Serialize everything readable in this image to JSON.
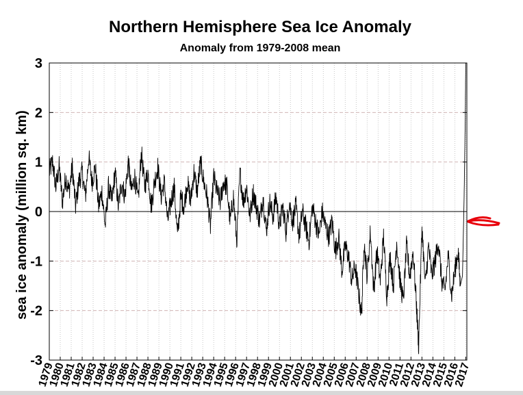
{
  "chart_data": {
    "type": "line",
    "title": "Northern Hemisphere Sea Ice Anomaly",
    "subtitle": "Anomaly from 1979-2008 mean",
    "xlabel": "",
    "ylabel": "sea ice anomaly (million sq. km)",
    "xlim": [
      1979,
      2017.1
    ],
    "ylim": [
      -3,
      3
    ],
    "yticks": [
      "3",
      "2",
      "1",
      "0",
      "-1",
      "-2",
      "-3"
    ],
    "ytick_values": [
      3,
      2,
      1,
      0,
      -1,
      -2,
      -3
    ],
    "xticks": [
      "1979",
      "1980",
      "1981",
      "1982",
      "1983",
      "1984",
      "1985",
      "1986",
      "1987",
      "1988",
      "1989",
      "1990",
      "1991",
      "1992",
      "1993",
      "1994",
      "1995",
      "1996",
      "1997",
      "1998",
      "1999",
      "2000",
      "2001",
      "2002",
      "2003",
      "2004",
      "2005",
      "2006",
      "2007",
      "2008",
      "2009",
      "2010",
      "2011",
      "2012",
      "2013",
      "2014",
      "2015",
      "2016",
      "2017"
    ],
    "grid": true,
    "zero_line": true,
    "series": [
      {
        "name": "anomaly",
        "color": "#000000",
        "x": [
          1979.0,
          1979.3,
          1979.6,
          1979.9,
          1980.2,
          1980.5,
          1980.8,
          1981.1,
          1981.4,
          1981.7,
          1982.0,
          1982.3,
          1982.6,
          1982.9,
          1983.2,
          1983.5,
          1983.8,
          1984.1,
          1984.4,
          1984.7,
          1985.0,
          1985.3,
          1985.6,
          1985.9,
          1986.2,
          1986.5,
          1986.8,
          1987.1,
          1987.4,
          1987.7,
          1988.0,
          1988.3,
          1988.6,
          1988.9,
          1989.2,
          1989.5,
          1989.8,
          1990.1,
          1990.4,
          1990.7,
          1991.0,
          1991.3,
          1991.6,
          1991.9,
          1992.2,
          1992.5,
          1992.8,
          1993.1,
          1993.4,
          1993.7,
          1994.0,
          1994.3,
          1994.6,
          1994.9,
          1995.2,
          1995.5,
          1995.8,
          1996.1,
          1996.4,
          1996.7,
          1997.0,
          1997.3,
          1997.6,
          1997.9,
          1998.2,
          1998.5,
          1998.8,
          1999.1,
          1999.4,
          1999.7,
          2000.0,
          2000.3,
          2000.6,
          2000.9,
          2001.2,
          2001.5,
          2001.8,
          2002.1,
          2002.4,
          2002.7,
          2003.0,
          2003.3,
          2003.6,
          2003.9,
          2004.2,
          2004.5,
          2004.8,
          2005.1,
          2005.4,
          2005.7,
          2006.0,
          2006.3,
          2006.6,
          2006.9,
          2007.2,
          2007.5,
          2007.7,
          2008.0,
          2008.3,
          2008.6,
          2008.9,
          2009.2,
          2009.5,
          2009.8,
          2010.1,
          2010.4,
          2010.7,
          2011.0,
          2011.3,
          2011.6,
          2011.9,
          2012.2,
          2012.5,
          2012.7,
          2013.0,
          2013.3,
          2013.6,
          2013.9,
          2014.2,
          2014.5,
          2014.8,
          2015.1,
          2015.4,
          2015.7,
          2016.0,
          2016.3,
          2016.5,
          2016.7,
          2016.85,
          2016.95,
          2017.0
        ],
        "y": [
          0.8,
          1.0,
          0.5,
          0.9,
          0.2,
          0.7,
          0.4,
          0.9,
          0.1,
          0.6,
          0.8,
          0.3,
          1.1,
          0.6,
          0.9,
          0.1,
          0.4,
          -0.3,
          0.5,
          0.2,
          0.8,
          0.1,
          0.6,
          0.3,
          1.0,
          0.4,
          0.7,
          0.2,
          1.2,
          0.5,
          0.8,
          0.1,
          0.6,
          0.9,
          0.3,
          0.6,
          -0.2,
          0.2,
          0.5,
          -0.5,
          0.3,
          0.1,
          0.6,
          0.2,
          0.8,
          0.4,
          1.0,
          0.6,
          0.3,
          -0.3,
          0.7,
          0.4,
          0.2,
          0.6,
          0.5,
          -0.2,
          0.3,
          -0.6,
          0.8,
          0.2,
          0.5,
          -0.1,
          0.4,
          0.1,
          -0.2,
          0.3,
          -0.4,
          0.2,
          -0.1,
          0.3,
          -0.3,
          0.1,
          -0.4,
          0.2,
          -0.2,
          0.1,
          -0.5,
          0.0,
          -0.3,
          -0.6,
          0.1,
          -0.2,
          -0.5,
          0.0,
          -0.3,
          -0.5,
          -0.2,
          -0.8,
          -0.5,
          -1.2,
          -0.7,
          -0.9,
          -1.4,
          -1.1,
          -1.6,
          -2.1,
          -0.6,
          -1.3,
          -0.4,
          -1.6,
          -0.8,
          -1.4,
          -0.5,
          -1.7,
          -0.9,
          -1.5,
          -0.6,
          -1.4,
          -1.8,
          -0.7,
          -1.3,
          -0.8,
          -1.9,
          -2.7,
          -0.3,
          -1.5,
          -0.7,
          -1.3,
          -1.0,
          -0.6,
          -1.4,
          -1.6,
          -0.9,
          -1.7,
          -1.2,
          -0.8,
          -1.5,
          -1.3,
          0.3,
          1.8,
          3.0
        ]
      }
    ],
    "annotation": {
      "type": "arrow",
      "color": "#e8000b",
      "description": "hand-drawn red arrow pointing at latest value"
    }
  }
}
